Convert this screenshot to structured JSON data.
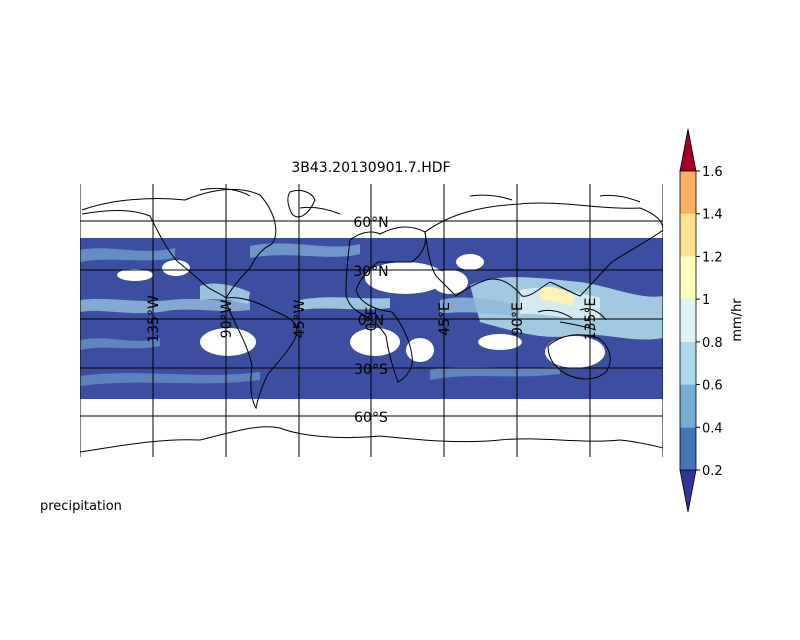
{
  "title": "3B43.20130901.7.HDF",
  "variable_label": "precipitation",
  "colorbar": {
    "unit_label": "mm/hr",
    "ticks": [
      "0.2",
      "0.4",
      "0.6",
      "0.8",
      "1",
      "1.2",
      "1.4",
      "1.6"
    ],
    "levels": [
      0.2,
      0.4,
      0.6,
      0.8,
      1.0,
      1.2,
      1.4,
      1.6
    ],
    "colors": [
      "#4575b4",
      "#74add1",
      "#abd9e9",
      "#e0f3f8",
      "#ffffbf",
      "#fee090",
      "#fdae61",
      "#f46d43",
      "#d73027"
    ],
    "under_color": "#313695",
    "over_color": "#a50026",
    "extend": "both"
  },
  "map": {
    "projection": "cylindrical",
    "lon_range": [
      -180,
      180
    ],
    "lat_range": [
      -90,
      90
    ],
    "data_lat_range": [
      -50,
      50
    ],
    "background_color": "#3c4ea0",
    "gridlines": true,
    "lat_labels": [
      "60°N",
      "30°N",
      "0°N",
      "30°S",
      "60°S"
    ],
    "lon_labels": [
      "135°W",
      "90°W",
      "45°W",
      "0°E",
      "45°E",
      "90°E",
      "135°E"
    ]
  }
}
